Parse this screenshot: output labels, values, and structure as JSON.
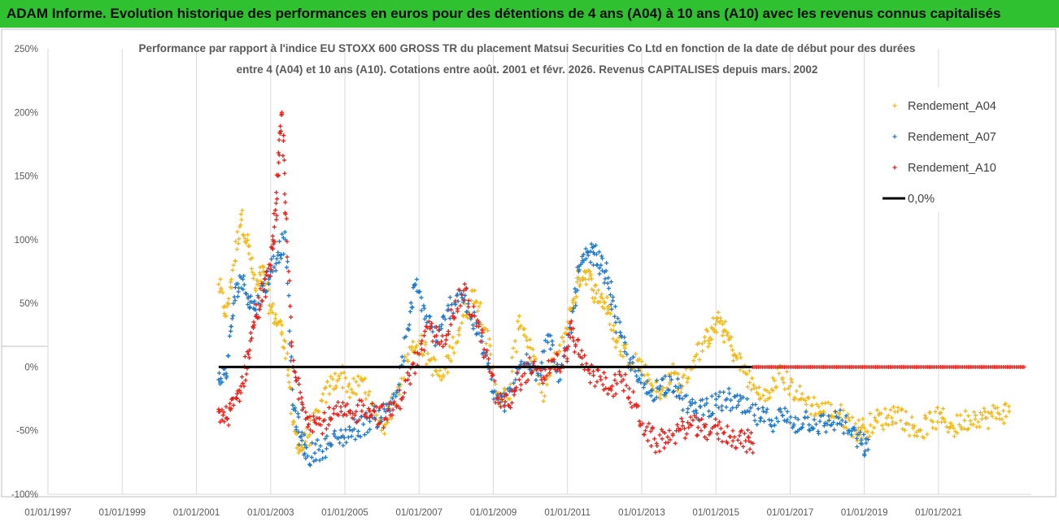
{
  "banner_title": "ADAM Informe. Evolution historique des performances en euros pour des détentions de 4 ans (A04) à 10 ans (A10) avec les revenus connus capitalisés",
  "chart_data": {
    "type": "scatter",
    "title_line1": "Performance par rapport à l'indice EU STOXX 600 GROSS TR  du placement Matsui Securities Co Ltd en fonction de la date de début pour des durées",
    "title_line2": "entre 4 (A04) et 10 ans (A10). Cotations entre août. 2001 et févr. 2026. Revenus CAPITALISES depuis mars. 2002",
    "x_ticks": [
      "01/01/1997",
      "01/01/1999",
      "01/01/2001",
      "01/01/2003",
      "01/01/2005",
      "01/01/2007",
      "01/01/2009",
      "01/01/2011",
      "01/01/2013",
      "01/01/2015",
      "01/01/2017",
      "01/01/2019",
      "01/01/2021"
    ],
    "xlim": [
      1997.0,
      2023.5
    ],
    "y_ticks": [
      "250%",
      "200%",
      "150%",
      "100%",
      "50%",
      "0%",
      "-50%",
      "-100%"
    ],
    "y_tick_values": [
      250,
      200,
      150,
      100,
      50,
      0,
      -50,
      -100
    ],
    "ylim": [
      -100,
      250
    ],
    "grid": true,
    "legend_position": "top-right",
    "series": [
      {
        "name": "Rendement_A04",
        "color": "#f2b81a",
        "x": [
          2001.6,
          2001.8,
          2002.0,
          2002.2,
          2002.4,
          2002.6,
          2002.8,
          2003.0,
          2003.2,
          2003.4,
          2003.6,
          2003.8,
          2004.0,
          2004.3,
          2004.6,
          2004.9,
          2005.2,
          2005.5,
          2005.8,
          2006.1,
          2006.4,
          2006.7,
          2007.0,
          2007.3,
          2007.6,
          2007.9,
          2008.2,
          2008.5,
          2008.8,
          2009.1,
          2009.4,
          2009.7,
          2010.0,
          2010.3,
          2010.6,
          2010.9,
          2011.1,
          2011.3,
          2011.5,
          2011.7,
          2011.9,
          2012.1,
          2012.3,
          2012.6,
          2012.9,
          2013.2,
          2013.5,
          2013.8,
          2014.1,
          2014.4,
          2014.7,
          2014.9,
          2015.1,
          2015.3,
          2015.5,
          2015.8,
          2016.1,
          2016.4,
          2016.7,
          2017.0,
          2017.3,
          2017.6,
          2017.9,
          2018.2,
          2018.5,
          2018.8,
          2019.0,
          2019.3,
          2019.6,
          2019.9,
          2020.2,
          2020.5,
          2020.8,
          2021.1,
          2021.4,
          2021.7,
          2022.0,
          2022.3,
          2022.6,
          2022.9
        ],
        "y": [
          65,
          40,
          80,
          120,
          95,
          60,
          75,
          45,
          35,
          20,
          -45,
          -65,
          -55,
          -35,
          -15,
          -5,
          -20,
          -10,
          -40,
          -45,
          -20,
          10,
          20,
          5,
          -10,
          15,
          40,
          60,
          30,
          -20,
          -25,
          40,
          15,
          -20,
          0,
          20,
          45,
          70,
          75,
          60,
          55,
          45,
          20,
          10,
          5,
          -10,
          -25,
          -5,
          -15,
          5,
          20,
          30,
          35,
          25,
          10,
          -5,
          -20,
          -25,
          -5,
          -15,
          -25,
          -30,
          -35,
          -35,
          -40,
          -50,
          -48,
          -42,
          -40,
          -35,
          -45,
          -50,
          -42,
          -40,
          -48,
          -42,
          -38,
          -40,
          -36,
          -35
        ]
      },
      {
        "name": "Rendement_A07",
        "color": "#1f78c8",
        "x": [
          2001.6,
          2001.8,
          2002.0,
          2002.2,
          2002.4,
          2002.6,
          2002.8,
          2003.0,
          2003.2,
          2003.4,
          2003.6,
          2003.8,
          2004.0,
          2004.3,
          2004.6,
          2004.9,
          2005.2,
          2005.5,
          2005.8,
          2006.1,
          2006.4,
          2006.7,
          2006.9,
          2007.2,
          2007.5,
          2007.8,
          2008.1,
          2008.4,
          2008.7,
          2009.0,
          2009.3,
          2009.6,
          2009.9,
          2010.2,
          2010.5,
          2010.8,
          2011.1,
          2011.3,
          2011.5,
          2011.7,
          2011.9,
          2012.1,
          2012.3,
          2012.6,
          2012.9,
          2013.2,
          2013.5,
          2013.8,
          2014.1,
          2014.4,
          2014.7,
          2015.0,
          2015.3,
          2015.6,
          2015.9,
          2016.2,
          2016.5,
          2016.8,
          2017.1,
          2017.4,
          2017.7,
          2018.0,
          2018.3,
          2018.6,
          2018.9,
          2019.1
        ],
        "y": [
          -10,
          -5,
          50,
          70,
          55,
          45,
          60,
          75,
          90,
          100,
          -30,
          -55,
          -70,
          -65,
          -60,
          -55,
          -50,
          -45,
          -40,
          -35,
          -20,
          30,
          65,
          40,
          20,
          45,
          60,
          40,
          20,
          -20,
          -30,
          -10,
          10,
          -5,
          25,
          -10,
          30,
          75,
          85,
          90,
          80,
          70,
          35,
          10,
          -10,
          -20,
          -15,
          -10,
          -25,
          -35,
          -30,
          -30,
          -25,
          -30,
          -35,
          -40,
          -42,
          -38,
          -45,
          -40,
          -45,
          -45,
          -40,
          -50,
          -60,
          -65
        ]
      },
      {
        "name": "Rendement_A10",
        "color": "#e8201a",
        "x": [
          2001.6,
          2001.8,
          2002.0,
          2002.2,
          2002.4,
          2002.6,
          2002.8,
          2003.0,
          2003.1,
          2003.2,
          2003.3,
          2003.4,
          2003.6,
          2003.8,
          2004.0,
          2004.3,
          2004.6,
          2004.9,
          2005.2,
          2005.5,
          2005.8,
          2006.1,
          2006.4,
          2006.7,
          2007.0,
          2007.3,
          2007.6,
          2007.9,
          2008.2,
          2008.5,
          2008.8,
          2009.1,
          2009.4,
          2009.7,
          2010.0,
          2010.3,
          2010.6,
          2010.9,
          2011.1,
          2011.3,
          2011.6,
          2011.9,
          2012.2,
          2012.5,
          2012.8,
          2013.1,
          2013.4,
          2013.7,
          2014.0,
          2014.3,
          2014.6,
          2014.9,
          2015.2,
          2015.5,
          2015.8,
          2016.0
        ],
        "y": [
          -35,
          -40,
          -30,
          -15,
          10,
          40,
          60,
          80,
          110,
          150,
          200,
          120,
          0,
          -20,
          -40,
          -45,
          -40,
          -35,
          -40,
          -30,
          -35,
          -40,
          -30,
          -10,
          10,
          30,
          20,
          40,
          60,
          40,
          10,
          -25,
          -30,
          -10,
          0,
          -10,
          5,
          0,
          30,
          10,
          -5,
          -10,
          -15,
          -10,
          -30,
          -50,
          -60,
          -55,
          -50,
          -45,
          -50,
          -48,
          -52,
          -55,
          -58,
          -60
        ]
      },
      {
        "name": "0,0%",
        "color": "#000000",
        "x": [
          2001.6,
          2016.0
        ],
        "y": [
          0,
          0
        ]
      }
    ],
    "flat_segment": {
      "color": "#e8201a",
      "x": [
        2016.0,
        2023.3
      ],
      "y": [
        0,
        0
      ]
    }
  }
}
